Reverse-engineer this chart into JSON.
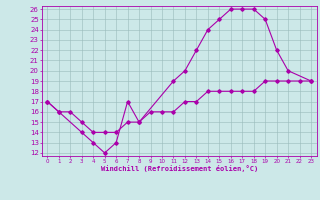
{
  "xlabel": "Windchill (Refroidissement éolien,°C)",
  "bg_color": "#cce8e8",
  "line_color": "#aa00aa",
  "grid_color": "#99bbbb",
  "xlim": [
    0,
    23
  ],
  "ylim": [
    12,
    26
  ],
  "xticks": [
    0,
    1,
    2,
    3,
    4,
    5,
    6,
    7,
    8,
    9,
    10,
    11,
    12,
    13,
    14,
    15,
    16,
    17,
    18,
    19,
    20,
    21,
    22,
    23
  ],
  "yticks": [
    12,
    13,
    14,
    15,
    16,
    17,
    18,
    19,
    20,
    21,
    22,
    23,
    24,
    25,
    26
  ],
  "line1_x": [
    0,
    1,
    3,
    4,
    5,
    6,
    7,
    8,
    11,
    12,
    13,
    14,
    15,
    16,
    17,
    18,
    19,
    20,
    21,
    23
  ],
  "line1_y": [
    17,
    16,
    14,
    13,
    12,
    13,
    17,
    15,
    19,
    20,
    22,
    24,
    25,
    26,
    26,
    26,
    25,
    22,
    20,
    19
  ],
  "line2_x": [
    0,
    1,
    2,
    3,
    4,
    5,
    6,
    7,
    8,
    9,
    10,
    11,
    12,
    13,
    14,
    15,
    16,
    17,
    18,
    19,
    20,
    21,
    22,
    23
  ],
  "line2_y": [
    17,
    16,
    16,
    15,
    14,
    14,
    14,
    15,
    15,
    16,
    16,
    16,
    17,
    17,
    18,
    18,
    18,
    18,
    18,
    19,
    19,
    19,
    19,
    19
  ]
}
